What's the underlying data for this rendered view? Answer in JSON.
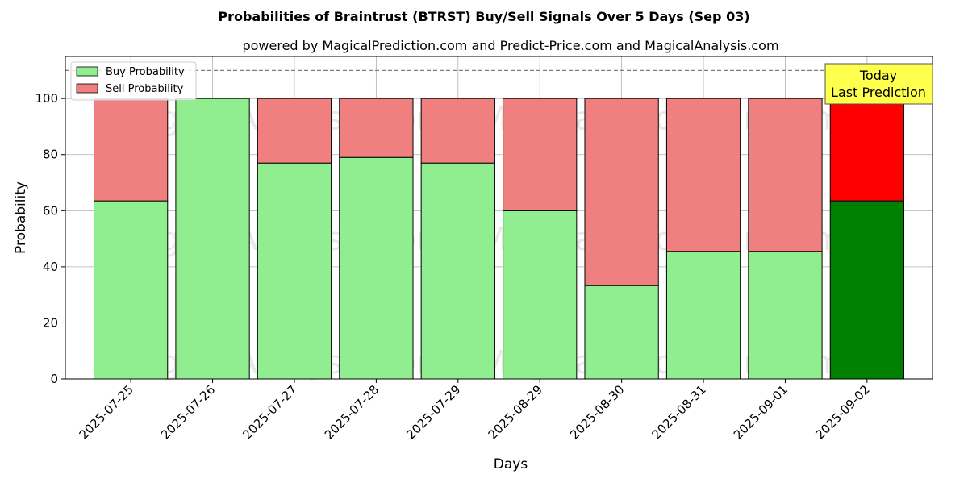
{
  "chart_data": {
    "type": "bar",
    "stacked": true,
    "title": "Probabilities of Braintrust (BTRST) Buy/Sell Signals Over 5 Days (Sep 03)",
    "subtitle": "powered by MagicalPrediction.com and Predict-Price.com and MagicalAnalysis.com",
    "xlabel": "Days",
    "ylabel": "Probability",
    "ylim": [
      0,
      115
    ],
    "yticks": [
      0,
      20,
      40,
      60,
      80,
      100
    ],
    "reference_line": 110,
    "grid": true,
    "legend_position": "top-left",
    "categories": [
      "2025-07-25",
      "2025-07-26",
      "2025-07-27",
      "2025-07-28",
      "2025-07-29",
      "2025-08-29",
      "2025-08-30",
      "2025-08-31",
      "2025-09-01",
      "2025-09-02"
    ],
    "series": [
      {
        "name": "Buy Probability",
        "color": "#90ee90",
        "highlight_color": "#008000",
        "values": [
          63.5,
          100,
          77,
          79,
          77,
          60,
          33.3,
          45.5,
          45.5,
          63.5
        ]
      },
      {
        "name": "Sell Probability",
        "color": "#f08080",
        "highlight_color": "#ff0000",
        "values": [
          36.5,
          0,
          23,
          21,
          23,
          40,
          66.7,
          54.5,
          54.5,
          36.5
        ]
      }
    ],
    "highlight_index": 9,
    "annotation": {
      "line1": "Today",
      "line2": "Last Prediction",
      "background": "#ffff4d"
    },
    "watermarks": [
      "MagicalAnalysis.com",
      "MagicalPrediction.com"
    ]
  }
}
